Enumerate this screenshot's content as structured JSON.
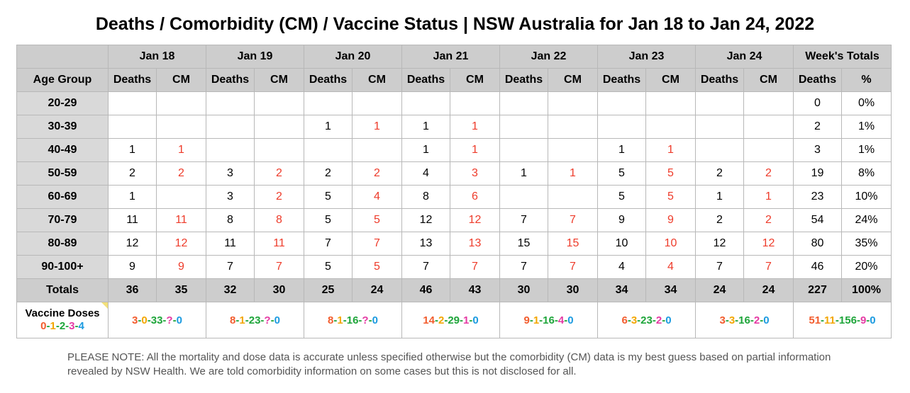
{
  "title": "Deaths / Comorbidity (CM) / Vaccine Status | NSW Australia for Jan 18 to Jan 24, 2022",
  "dates": [
    "Jan 18",
    "Jan 19",
    "Jan 20",
    "Jan 21",
    "Jan 22",
    "Jan 23",
    "Jan 24"
  ],
  "totals_header": "Week's Totals",
  "subheaders": {
    "age_group": "Age Group",
    "deaths": "Deaths",
    "cm": "CM",
    "pct": "%"
  },
  "rows": [
    {
      "age": "20-29",
      "cells": [
        "",
        "",
        "",
        "",
        "",
        "",
        "",
        "",
        "",
        "",
        "",
        "",
        "",
        ""
      ],
      "week_deaths": "0",
      "week_pct": "0%"
    },
    {
      "age": "30-39",
      "cells": [
        "",
        "",
        "",
        "",
        "1",
        "1",
        "1",
        "1",
        "",
        "",
        "",
        "",
        "",
        ""
      ],
      "week_deaths": "2",
      "week_pct": "1%"
    },
    {
      "age": "40-49",
      "cells": [
        "1",
        "1",
        "",
        "",
        "",
        "",
        "1",
        "1",
        "",
        "",
        "1",
        "1",
        "",
        ""
      ],
      "week_deaths": "3",
      "week_pct": "1%"
    },
    {
      "age": "50-59",
      "cells": [
        "2",
        "2",
        "3",
        "2",
        "2",
        "2",
        "4",
        "3",
        "1",
        "1",
        "5",
        "5",
        "2",
        "2"
      ],
      "week_deaths": "19",
      "week_pct": "8%"
    },
    {
      "age": "60-69",
      "cells": [
        "1",
        "",
        "3",
        "2",
        "5",
        "4",
        "8",
        "6",
        "",
        "",
        "5",
        "5",
        "1",
        "1"
      ],
      "week_deaths": "23",
      "week_pct": "10%"
    },
    {
      "age": "70-79",
      "cells": [
        "11",
        "11",
        "8",
        "8",
        "5",
        "5",
        "12",
        "12",
        "7",
        "7",
        "9",
        "9",
        "2",
        "2"
      ],
      "week_deaths": "54",
      "week_pct": "24%"
    },
    {
      "age": "80-89",
      "cells": [
        "12",
        "12",
        "11",
        "11",
        "7",
        "7",
        "13",
        "13",
        "15",
        "15",
        "10",
        "10",
        "12",
        "12"
      ],
      "week_deaths": "80",
      "week_pct": "35%"
    },
    {
      "age": "90-100+",
      "cells": [
        "9",
        "9",
        "7",
        "7",
        "5",
        "5",
        "7",
        "7",
        "7",
        "7",
        "4",
        "4",
        "7",
        "7"
      ],
      "week_deaths": "46",
      "week_pct": "20%"
    }
  ],
  "totals": {
    "label": "Totals",
    "cells": [
      "36",
      "35",
      "32",
      "30",
      "25",
      "24",
      "46",
      "43",
      "30",
      "30",
      "34",
      "34",
      "24",
      "24"
    ],
    "week_deaths": "227",
    "week_pct": "100%"
  },
  "vaccine": {
    "label": "Vaccine Doses",
    "legend": [
      "0",
      "1",
      "2",
      "3",
      "4"
    ],
    "days": [
      [
        "3",
        "0",
        "33",
        "?",
        "0"
      ],
      [
        "8",
        "1",
        "23",
        "?",
        "0"
      ],
      [
        "8",
        "1",
        "16",
        "?",
        "0"
      ],
      [
        "14",
        "2",
        "29",
        "1",
        "0"
      ],
      [
        "9",
        "1",
        "16",
        "4",
        "0"
      ],
      [
        "6",
        "3",
        "23",
        "2",
        "0"
      ],
      [
        "3",
        "3",
        "16",
        "2",
        "0"
      ]
    ],
    "week": [
      "51",
      "11",
      "156",
      "9",
      "0"
    ]
  },
  "note": "PLEASE NOTE: All the mortality and dose data is accurate unless specified otherwise but the comorbidity (CM) data is my best guess based on partial information revealed by NSW Health. We are told comorbidity information on some cases but this is not disclosed for all.",
  "colors": {
    "cm": "#ee3b2a",
    "dose0": "#f25c2d",
    "dose1": "#f3a600",
    "dose2": "#1ea53a",
    "dose3": "#e53aa4",
    "dose4": "#1a9ae0",
    "header_bg": "#cdcdcd"
  }
}
